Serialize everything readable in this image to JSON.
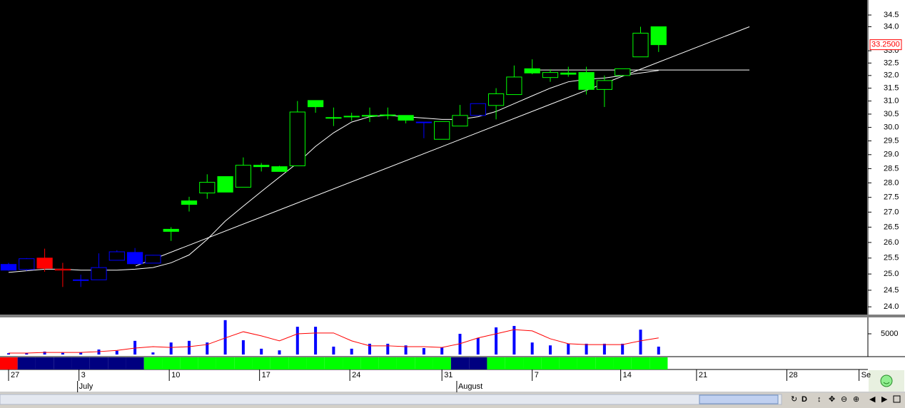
{
  "chart_data": {
    "type": "candlestick",
    "xlim": [
      -0.474,
      47.55
    ],
    "xticks": [
      {
        "value": 0,
        "label": "27"
      },
      {
        "value": 3.9,
        "label": "3"
      },
      {
        "value": 8.9,
        "label": "10"
      },
      {
        "value": 13.9,
        "label": "17"
      },
      {
        "value": 18.9,
        "label": "24"
      },
      {
        "value": 24,
        "label": "31"
      },
      {
        "value": 29,
        "label": "7"
      },
      {
        "value": 33.9,
        "label": "14"
      },
      {
        "value": 38.1,
        "label": "21"
      },
      {
        "value": 43.1,
        "label": "28"
      },
      {
        "value": 47.1,
        "label": "Se"
      }
    ],
    "month_ticks": [
      {
        "value": 3.9,
        "label": "July"
      },
      {
        "value": 24.9,
        "label": "August"
      }
    ],
    "ylim": [
      23.77,
      35.15
    ],
    "log_scale": true,
    "yticks": [
      {
        "value": 24,
        "label": "24.0"
      },
      24.5,
      {
        "value": 25,
        "label": "25.0"
      },
      25.5,
      {
        "value": 26,
        "label": "26.0"
      },
      26.5,
      {
        "value": 27,
        "label": "27.0"
      },
      27.5,
      {
        "value": 28,
        "label": "28.0"
      },
      28.5,
      {
        "value": 29,
        "label": "29.0"
      },
      29.5,
      {
        "value": 30,
        "label": "30.0"
      },
      30.5,
      {
        "value": 31,
        "label": "31.0"
      },
      31.5,
      {
        "value": 32,
        "label": "32.0"
      },
      32.5,
      {
        "value": 33,
        "label": "33.0"
      },
      {
        "value": 34,
        "label": "34.0"
      },
      34.5
    ],
    "last_price": {
      "value": 33.25,
      "label": "33.2500",
      "color": "#ff0000"
    },
    "ohlc": {
      "open": [
        25.3,
        25.14,
        25.5,
        25.12,
        24.8,
        24.82,
        25.43,
        25.68,
        25.34,
        26.43,
        27.38,
        27.65,
        28.22,
        27.85,
        28.62,
        28.57,
        28.6,
        31.02,
        30.37,
        30.42,
        30.45,
        30.47,
        30.45,
        30.2,
        29.56,
        30.05,
        30.45,
        30.83,
        31.25,
        32.27,
        31.92,
        32.1,
        32.12,
        31.45,
        32.0,
        32.75,
        34.0
      ],
      "high": [
        25.35,
        25.5,
        25.8,
        25.35,
        24.98,
        25.65,
        25.75,
        25.82,
        25.6,
        26.5,
        27.52,
        28.3,
        28.22,
        28.9,
        28.7,
        28.6,
        31.0,
        31.02,
        30.75,
        30.55,
        30.75,
        30.75,
        30.45,
        30.2,
        30.22,
        30.85,
        30.9,
        31.5,
        32.4,
        32.65,
        32.25,
        32.35,
        32.35,
        32.0,
        32.27,
        34.0,
        34.0
      ],
      "low": [
        25.1,
        25.1,
        25.07,
        24.6,
        24.6,
        24.82,
        25.43,
        25.3,
        25.34,
        26.05,
        27.02,
        27.45,
        27.68,
        27.85,
        28.4,
        28.4,
        28.6,
        30.55,
        30.05,
        30.25,
        30.2,
        30.3,
        30.15,
        29.6,
        29.56,
        30.05,
        30.45,
        30.3,
        31.25,
        32.05,
        31.75,
        31.95,
        31.25,
        30.77,
        32.0,
        32.75,
        32.95
      ],
      "close": [
        25.12,
        25.48,
        25.18,
        25.15,
        24.82,
        25.2,
        25.7,
        25.32,
        25.59,
        26.36,
        27.26,
        28.02,
        27.68,
        28.62,
        28.57,
        28.4,
        30.58,
        30.78,
        30.35,
        30.4,
        30.43,
        30.45,
        30.27,
        30.18,
        30.22,
        30.45,
        30.9,
        31.28,
        31.94,
        32.1,
        32.12,
        32.05,
        31.45,
        31.8,
        32.27,
        33.73,
        33.25
      ],
      "colors": [
        "#0000ff",
        "#0000ff",
        "#ff0000",
        "#ff0000",
        "#0000ff",
        "#0000ff",
        "#0000ff",
        "#0000ff",
        "#0000ff",
        "#00ff00",
        "#00ff00",
        "#00ff00",
        "#00ff00",
        "#00ff00",
        "#00ff00",
        "#00ff00",
        "#00ff00",
        "#00ff00",
        "#00ff00",
        "#00ff00",
        "#00ff00",
        "#00ff00",
        "#00ff00",
        "#0000ff",
        "#00ff00",
        "#00ff00",
        "#0000ff",
        "#00ff00",
        "#00ff00",
        "#00ff00",
        "#00ff00",
        "#00ff00",
        "#00ff00",
        "#00ff00",
        "#00ff00",
        "#00ff00",
        "#00ff00"
      ],
      "filled": [
        true,
        false,
        true,
        false,
        false,
        false,
        false,
        true,
        false,
        true,
        true,
        false,
        true,
        false,
        true,
        true,
        false,
        true,
        true,
        true,
        true,
        true,
        true,
        true,
        false,
        false,
        false,
        false,
        false,
        true,
        false,
        true,
        true,
        false,
        false,
        false,
        true
      ]
    },
    "lines": [
      {
        "color": "#ffffff",
        "x": [
          0,
          1,
          2,
          3,
          4,
          5,
          6,
          7,
          8,
          9,
          10,
          11,
          12,
          13,
          14,
          15,
          16,
          17,
          18,
          19,
          20,
          21,
          22,
          23,
          24,
          25,
          26,
          27,
          28,
          29,
          30,
          31,
          32,
          33,
          34,
          35,
          36
        ],
        "values": [
          25.05,
          25.1,
          25.15,
          25.15,
          25.12,
          25.12,
          25.12,
          25.15,
          25.2,
          25.35,
          25.6,
          26.1,
          26.7,
          27.2,
          27.7,
          28.2,
          28.7,
          29.3,
          29.8,
          30.2,
          30.4,
          30.45,
          30.4,
          30.35,
          30.3,
          30.3,
          30.4,
          30.6,
          30.9,
          31.2,
          31.5,
          31.75,
          31.85,
          31.9,
          32.0,
          32.1,
          32.2
        ]
      },
      {
        "color": "#ffffff",
        "x": [
          7.04,
          41.03
        ],
        "values": [
          25.25,
          34.0
        ]
      },
      {
        "color": "#ffffff",
        "x": [
          28.8,
          41.03
        ],
        "values": [
          32.22,
          32.22
        ]
      }
    ],
    "volume": {
      "values": [
        300,
        350,
        700,
        400,
        500,
        1200,
        900,
        3300,
        500,
        2900,
        3300,
        2900,
        8300,
        3450,
        1400,
        1000,
        6700,
        6700,
        1900,
        1400,
        2600,
        2600,
        2200,
        1550,
        1700,
        5000,
        4000,
        6550,
        6900,
        2900,
        2200,
        2600,
        2600,
        2600,
        2600,
        6000,
        1900
      ],
      "color": "#0000ff",
      "ma_values": [
        350,
        350,
        500,
        500,
        500,
        700,
        1000,
        1550,
        1900,
        1700,
        1900,
        2400,
        4000,
        5500,
        4500,
        3300,
        5000,
        5200,
        5200,
        3300,
        2100,
        2100,
        1900,
        1900,
        1700,
        2600,
        4000,
        5000,
        6000,
        5700,
        3800,
        2600,
        2400,
        2400,
        2400,
        3300,
        4000
      ],
      "ma_color": "#ff0000",
      "ylim": [
        0,
        8960
      ],
      "yticks": [
        5000
      ]
    },
    "regime_colors": [
      "#ff0000",
      "#000080",
      "#000080",
      "#000080",
      "#000080",
      "#000080",
      "#000080",
      "#000080",
      "#00ff00",
      "#00ff00",
      "#00ff00",
      "#00ff00",
      "#00ff00",
      "#00ff00",
      "#00ff00",
      "#00ff00",
      "#00ff00",
      "#00ff00",
      "#00ff00",
      "#00ff00",
      "#00ff00",
      "#00ff00",
      "#00ff00",
      "#00ff00",
      "#00ff00",
      "#000080",
      "#000080",
      "#00ff00",
      "#00ff00",
      "#00ff00",
      "#00ff00",
      "#00ff00",
      "#00ff00",
      "#00ff00",
      "#00ff00",
      "#00ff00",
      "#00ff00"
    ],
    "toolbar": {
      "d_label": "D"
    }
  }
}
